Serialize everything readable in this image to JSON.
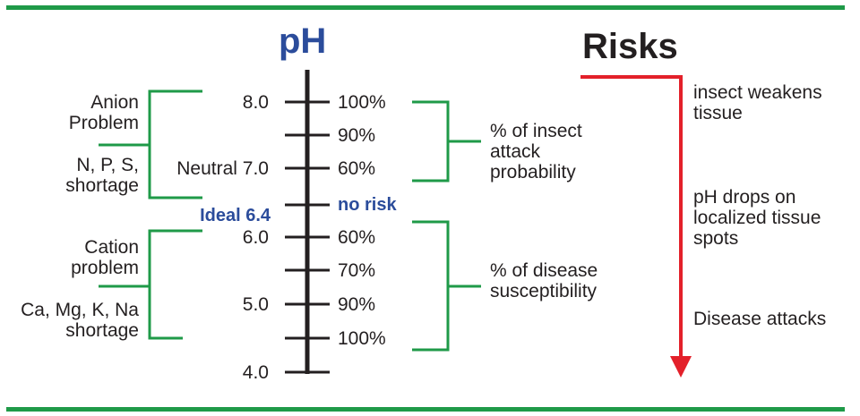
{
  "title_ph": "pH",
  "title_risks": "Risks",
  "scale_labels": [
    "8.0",
    "Neutral 7.0",
    "6.0",
    "5.0",
    "4.0"
  ],
  "ideal_label": "Ideal 6.4",
  "right_labels": [
    "100%",
    "90%",
    "60%",
    "no risk",
    "60%",
    "70%",
    "90%",
    "100%"
  ],
  "left_groups": {
    "anion": [
      "Anion",
      "Problem"
    ],
    "anion_shortage": [
      "N, P, S,",
      "shortage"
    ],
    "cation": [
      "Cation",
      "problem"
    ],
    "cation_shortage": [
      "Ca, Mg, K, Na",
      "shortage"
    ]
  },
  "right_groups": {
    "insect": [
      "% of insect",
      "attack",
      "probability"
    ],
    "disease": [
      "% of disease",
      "susceptibility"
    ]
  },
  "risks": {
    "step1": [
      "insect weakens",
      "tissue"
    ],
    "step2": [
      "pH drops on",
      "localized tissue",
      "spots"
    ],
    "step3": [
      "Disease attacks"
    ]
  },
  "colors": {
    "green": "#1f9a48",
    "red": "#e3202a",
    "blue": "#2b4c9b",
    "black": "#231f20"
  }
}
